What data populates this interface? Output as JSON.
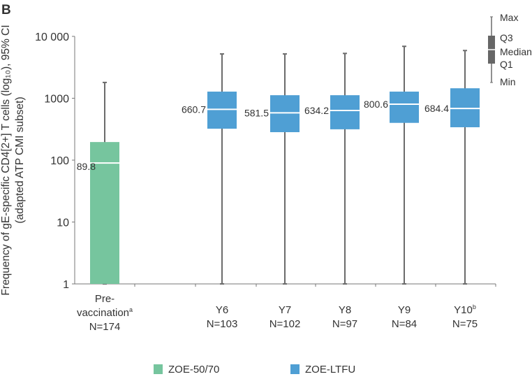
{
  "chart_data": {
    "type": "box",
    "panel_label": "B",
    "ylabel_line1": "Frequency of gE-specific CD4[2+] T cells (log₁₀), 95% CI",
    "ylabel_line2": "(adapted ATP CMI subset)",
    "yscale": "log10",
    "ylim": [
      1,
      10000
    ],
    "yticks": [
      {
        "value": 1,
        "label": "1"
      },
      {
        "value": 10,
        "label": "10"
      },
      {
        "value": 100,
        "label": "100"
      },
      {
        "value": 1000,
        "label": "1000"
      },
      {
        "value": 10000,
        "label": "10 000"
      }
    ],
    "categories": [
      {
        "lines": [
          "Pre-",
          "vaccination",
          "N=174"
        ],
        "sup": "a",
        "sup_line": 1,
        "group": "ZOE-50/70",
        "min": 1,
        "q1": 1,
        "median": 89.8,
        "q3": 196,
        "max": 1800,
        "median_label": "89.8"
      },
      {
        "lines": [
          "Y6",
          "N=103"
        ],
        "group": "ZOE-LTFU",
        "min": 1,
        "q1": 322,
        "median": 660.7,
        "q3": 1280,
        "max": 5200,
        "median_label": "660.7"
      },
      {
        "lines": [
          "Y7",
          "N=102"
        ],
        "group": "ZOE-LTFU",
        "min": 1,
        "q1": 283,
        "median": 581.5,
        "q3": 1120,
        "max": 5200,
        "median_label": "581.5"
      },
      {
        "lines": [
          "Y8",
          "N=97"
        ],
        "group": "ZOE-LTFU",
        "min": 1,
        "q1": 315,
        "median": 634.2,
        "q3": 1120,
        "max": 5300,
        "median_label": "634.2"
      },
      {
        "lines": [
          "Y9",
          "N=84"
        ],
        "group": "ZOE-LTFU",
        "min": 1,
        "q1": 400,
        "median": 800.6,
        "q3": 1280,
        "max": 6900,
        "median_label": "800.6"
      },
      {
        "lines": [
          "Y10",
          "N=75"
        ],
        "sup": "b",
        "sup_line": 0,
        "group": "ZOE-LTFU",
        "min": 1,
        "q1": 340,
        "median": 684.4,
        "q3": 1450,
        "max": 5900,
        "median_label": "684.4"
      }
    ],
    "legend": [
      {
        "label": "ZOE-50/70",
        "color": "#76c59e"
      },
      {
        "label": "ZOE-LTFU",
        "color": "#4f9fd4"
      }
    ],
    "key": {
      "max": "Max",
      "q3": "Q3",
      "median": "Median",
      "q1": "Q1",
      "min": "Min"
    },
    "legend_placement": "bottom",
    "grid": false
  }
}
